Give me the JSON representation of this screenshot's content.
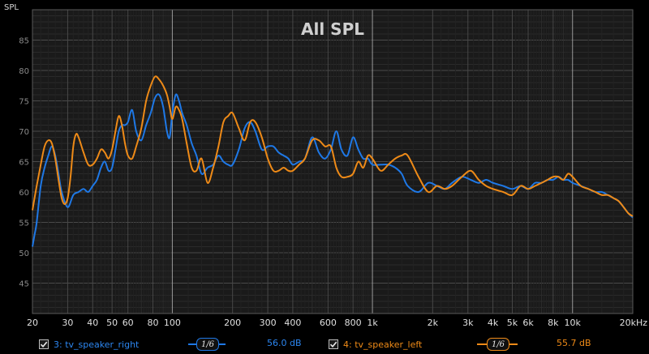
{
  "chart_data": {
    "type": "line",
    "title": "All SPL",
    "ylabel": "SPL",
    "xlabel": "",
    "x_scale": "log",
    "xlim": [
      20,
      20000
    ],
    "ylim": [
      40,
      90
    ],
    "x_ticks": [
      {
        "value": 20,
        "label": "20"
      },
      {
        "value": 30,
        "label": "30"
      },
      {
        "value": 40,
        "label": "40"
      },
      {
        "value": 50,
        "label": "50"
      },
      {
        "value": 60,
        "label": "60"
      },
      {
        "value": 80,
        "label": "80"
      },
      {
        "value": 100,
        "label": "100"
      },
      {
        "value": 200,
        "label": "200"
      },
      {
        "value": 300,
        "label": "300"
      },
      {
        "value": 400,
        "label": "400"
      },
      {
        "value": 600,
        "label": "600"
      },
      {
        "value": 800,
        "label": "800"
      },
      {
        "value": 1000,
        "label": "1k"
      },
      {
        "value": 2000,
        "label": "2k"
      },
      {
        "value": 3000,
        "label": "3k"
      },
      {
        "value": 4000,
        "label": "4k"
      },
      {
        "value": 5000,
        "label": "5k"
      },
      {
        "value": 6000,
        "label": "6k"
      },
      {
        "value": 8000,
        "label": "8k"
      },
      {
        "value": 10000,
        "label": "10k"
      },
      {
        "value": 20000,
        "label": "20kHz"
      }
    ],
    "y_ticks": [
      {
        "value": 45,
        "label": "45"
      },
      {
        "value": 50,
        "label": "50"
      },
      {
        "value": 55,
        "label": "55"
      },
      {
        "value": 60,
        "label": "60"
      },
      {
        "value": 65,
        "label": "65"
      },
      {
        "value": 70,
        "label": "70"
      },
      {
        "value": 75,
        "label": "75"
      },
      {
        "value": 80,
        "label": "80"
      },
      {
        "value": 85,
        "label": "85"
      }
    ],
    "grid": true,
    "series": [
      {
        "name": "3: tv_speaker_right",
        "color": "#1e78e6",
        "smoothing": "1/6",
        "level": "56.0 dB",
        "x": [
          20,
          20.5,
          21,
          22,
          23,
          24,
          25,
          26,
          27,
          28,
          30,
          32,
          34,
          36,
          38,
          40,
          42,
          44,
          46,
          48,
          50,
          52,
          54,
          56,
          58,
          60,
          63,
          66,
          70,
          74,
          78,
          82,
          86,
          90,
          94,
          97,
          100,
          104,
          108,
          112,
          118,
          125,
          132,
          140,
          150,
          160,
          170,
          180,
          190,
          200,
          215,
          230,
          245,
          260,
          280,
          300,
          320,
          340,
          360,
          380,
          400,
          430,
          460,
          500,
          540,
          580,
          620,
          660,
          700,
          750,
          800,
          850,
          900,
          950,
          1000,
          1100,
          1200,
          1300,
          1400,
          1500,
          1700,
          1900,
          2100,
          2300,
          2500,
          2800,
          3100,
          3400,
          3700,
          4000,
          4500,
          5000,
          5500,
          6000,
          6500,
          7000,
          7500,
          8000,
          8500,
          9000,
          9500,
          10000,
          11000,
          12000,
          13000,
          14000,
          15000,
          16000,
          17000,
          18000,
          19000,
          20000
        ],
        "y": [
          51,
          53,
          55,
          61,
          64,
          66,
          67.5,
          66,
          63,
          60,
          57.5,
          59.5,
          60,
          60.5,
          60,
          61,
          62,
          64,
          65,
          63.5,
          64,
          67,
          70,
          71,
          71,
          71.5,
          73.5,
          70,
          68.5,
          71,
          73,
          75.5,
          76,
          74,
          70,
          69,
          73,
          76,
          75,
          73,
          71,
          68,
          66,
          63,
          64,
          64.5,
          66,
          65,
          64.5,
          64.5,
          67,
          70.5,
          71.5,
          70,
          67,
          67.5,
          67.5,
          66.5,
          66,
          65.5,
          64.5,
          65,
          65.5,
          69,
          66.5,
          65.5,
          67,
          70,
          67,
          66,
          69,
          67,
          65.5,
          65.5,
          64.5,
          64.5,
          64.5,
          64,
          63,
          61,
          60,
          61.5,
          61,
          60.5,
          61.5,
          62.5,
          62,
          61.5,
          62,
          61.5,
          61,
          60.5,
          61,
          60.5,
          61.5,
          61.5,
          62,
          62,
          62.5,
          62,
          62,
          61.5,
          61,
          60.5,
          60,
          60,
          59.5,
          59,
          58.5,
          57.5,
          56.5,
          55.8
        ]
      },
      {
        "name": "4: tv_speaker_left",
        "color": "#ee8a17",
        "smoothing": "1/6",
        "level": "55.7 dB",
        "x": [
          20,
          21,
          22,
          23,
          24,
          25,
          26,
          27,
          28,
          29,
          30,
          31,
          32,
          33,
          34,
          36,
          38,
          40,
          42,
          44,
          46,
          48,
          50,
          52,
          54,
          56,
          58,
          60,
          63,
          66,
          70,
          74,
          78,
          82,
          86,
          90,
          94,
          97,
          100,
          104,
          108,
          112,
          118,
          125,
          132,
          140,
          150,
          160,
          170,
          180,
          190,
          200,
          215,
          230,
          245,
          260,
          280,
          300,
          320,
          340,
          360,
          380,
          400,
          430,
          460,
          500,
          540,
          580,
          620,
          660,
          700,
          750,
          800,
          850,
          900,
          950,
          1000,
          1100,
          1200,
          1300,
          1400,
          1500,
          1700,
          1900,
          2100,
          2300,
          2500,
          2800,
          3100,
          3400,
          3700,
          4000,
          4500,
          5000,
          5500,
          6000,
          6500,
          7000,
          7500,
          8000,
          8500,
          9000,
          9500,
          10000,
          11000,
          12000,
          13000,
          14000,
          15000,
          16000,
          17000,
          18000,
          19000,
          20000
        ],
        "y": [
          57,
          61,
          64.5,
          67.5,
          68.5,
          68,
          65.5,
          62,
          59,
          58,
          59,
          62.5,
          67.5,
          69.5,
          69,
          66.5,
          64.5,
          64.5,
          65.5,
          67,
          66.5,
          65.5,
          67,
          70,
          72.5,
          71,
          68,
          66,
          65.5,
          67.5,
          70.5,
          75,
          77.5,
          79,
          78.5,
          77.5,
          76,
          74,
          72,
          74,
          73.5,
          72,
          68,
          64,
          63.5,
          65.5,
          61.5,
          64,
          67.5,
          71.5,
          72.5,
          73,
          70.5,
          68.5,
          71.5,
          71.5,
          69,
          65.5,
          63.5,
          63.5,
          64,
          63.5,
          63.5,
          64.5,
          65.5,
          68.5,
          68.5,
          67.5,
          67.5,
          64,
          62.5,
          62.5,
          63,
          65,
          64,
          66,
          65.5,
          63.5,
          64.5,
          65.5,
          66,
          66,
          62.5,
          60,
          61,
          60.5,
          61,
          62.5,
          63.5,
          62,
          61,
          60.5,
          60,
          59.5,
          61,
          60.5,
          61,
          61.5,
          62,
          62.5,
          62.5,
          62,
          63,
          62.5,
          61,
          60.5,
          60,
          59.5,
          59.5,
          59,
          58.5,
          57.5,
          56.5,
          56
        ]
      }
    ]
  }
}
